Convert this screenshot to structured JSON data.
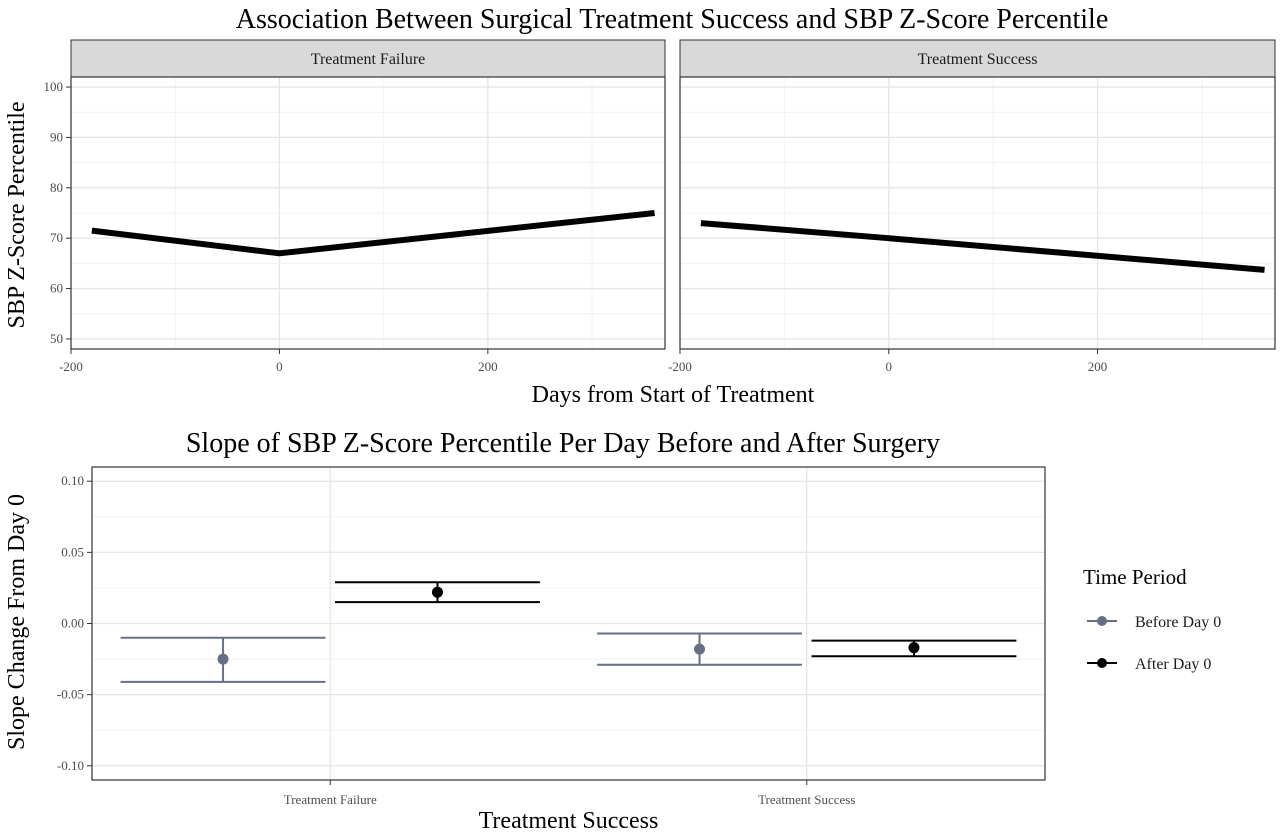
{
  "chart_data": [
    {
      "type": "line",
      "title": "Association Between Surgical Treatment Success and SBP Z-Score Percentile",
      "xlabel": "Days from Start of Treatment",
      "ylabel": "SBP Z-Score Percentile",
      "xlim": [
        -200,
        370
      ],
      "ylim": [
        48,
        102
      ],
      "x_ticks": [
        -200,
        0,
        200
      ],
      "x_tick_labels": [
        "-200",
        "0",
        "200"
      ],
      "y_ticks": [
        50,
        60,
        70,
        80,
        90,
        100
      ],
      "y_tick_labels": [
        "50",
        "60",
        "70",
        "80",
        "90",
        "100"
      ],
      "grid": true,
      "facets": [
        {
          "label": "Treatment Failure",
          "points": [
            [
              -180,
              71.5
            ],
            [
              0,
              67
            ],
            [
              360,
              75
            ]
          ]
        },
        {
          "label": "Treatment Success",
          "points": [
            [
              -180,
              73
            ],
            [
              0,
              70
            ],
            [
              360,
              63.7
            ]
          ]
        }
      ],
      "line_color": "#000000"
    },
    {
      "type": "scatter",
      "title": "Slope of SBP Z-Score Percentile Per Day Before and After Surgery",
      "xlabel": "Treatment Success",
      "ylabel": "Slope Change From Day 0",
      "ylim": [
        -0.11,
        0.11
      ],
      "y_ticks": [
        -0.1,
        -0.05,
        0,
        0.05,
        0.1
      ],
      "y_tick_labels": [
        "-0.10",
        "-0.05",
        "0.00",
        "0.05",
        "0.10"
      ],
      "categories": [
        "Treatment Failure",
        "Treatment Success"
      ],
      "grid": true,
      "legend": {
        "title": "Time Period",
        "position": "right"
      },
      "series": [
        {
          "name": "Before Day 0",
          "color": "#667085",
          "values": [
            -0.025,
            -0.018
          ],
          "lower": [
            -0.041,
            -0.029
          ],
          "upper": [
            -0.01,
            -0.007
          ]
        },
        {
          "name": "After Day 0",
          "color": "#000000",
          "values": [
            0.022,
            -0.017
          ],
          "lower": [
            0.015,
            -0.023
          ],
          "upper": [
            0.029,
            -0.012
          ]
        }
      ]
    }
  ]
}
